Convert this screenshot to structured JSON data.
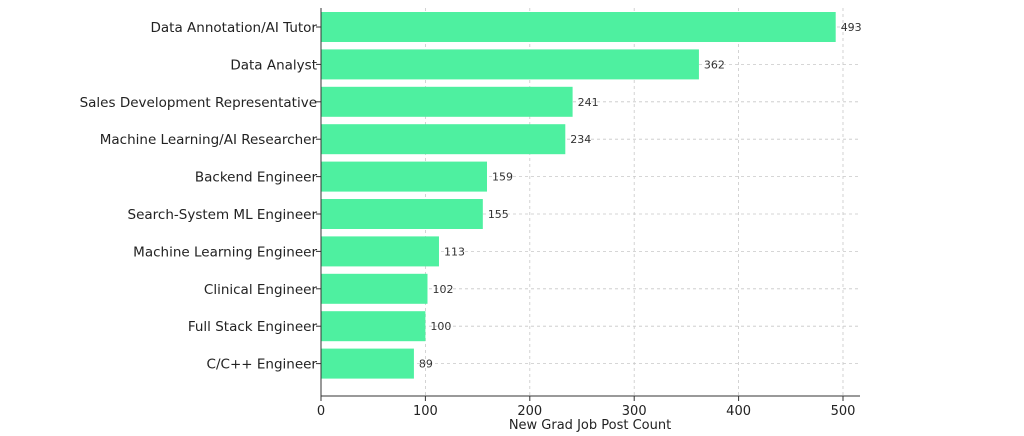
{
  "chart_data": {
    "type": "bar",
    "orientation": "horizontal",
    "categories": [
      "Data Annotation/AI Tutor",
      "Data Analyst",
      "Sales Development Representative",
      "Machine Learning/AI Researcher",
      "Backend Engineer",
      "Search-System ML Engineer",
      "Machine Learning Engineer",
      "Clinical Engineer",
      "Full Stack Engineer",
      "C/C++ Engineer"
    ],
    "values": [
      493,
      362,
      241,
      234,
      159,
      155,
      113,
      102,
      100,
      89
    ],
    "data_labels": [
      "493",
      "362",
      "241",
      "234",
      "159",
      "155",
      "113",
      "102",
      "100",
      "89"
    ],
    "title": "",
    "xlabel": "New Grad Job Post Count",
    "ylabel": "",
    "xlim": [
      0,
      515
    ],
    "xticks": [
      0,
      100,
      200,
      300,
      400,
      500
    ],
    "xtick_labels": [
      "0",
      "100",
      "200",
      "300",
      "400",
      "500"
    ],
    "grid": true,
    "bar_color": "#4ef0a0"
  }
}
